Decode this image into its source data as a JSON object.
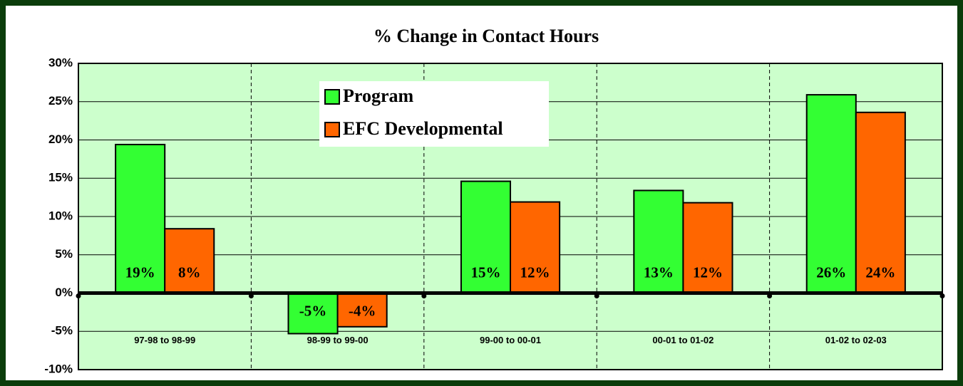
{
  "chart_data": {
    "type": "bar",
    "title": "% Change in Contact Hours",
    "categories": [
      "97-98 to 98-99",
      "98-99 to 99-00",
      "99-00 to 00-01",
      "00-01 to 01-02",
      "01-02 to 02-03"
    ],
    "series": [
      {
        "name": "Program",
        "color": "#33ff33",
        "values": [
          19.4,
          -5.3,
          14.6,
          13.4,
          25.9
        ],
        "value_labels": [
          "19%",
          "-5%",
          "15%",
          "13%",
          "26%"
        ]
      },
      {
        "name": "EFC Developmental",
        "color": "#ff6600",
        "values": [
          8.4,
          -4.4,
          11.9,
          11.8,
          23.6
        ],
        "value_labels": [
          "8%",
          "-4%",
          "12%",
          "12%",
          "24%"
        ]
      }
    ],
    "ylim": [
      -10,
      30
    ],
    "yticks": [
      {
        "value": -10,
        "label": "-10%"
      },
      {
        "value": -5,
        "label": "-5%"
      },
      {
        "value": 0,
        "label": "0%"
      },
      {
        "value": 5,
        "label": "5%"
      },
      {
        "value": 10,
        "label": "10%"
      },
      {
        "value": 15,
        "label": "15%"
      },
      {
        "value": 20,
        "label": "20%"
      },
      {
        "value": 25,
        "label": "25%"
      },
      {
        "value": 30,
        "label": "30%"
      }
    ],
    "grid": true
  }
}
